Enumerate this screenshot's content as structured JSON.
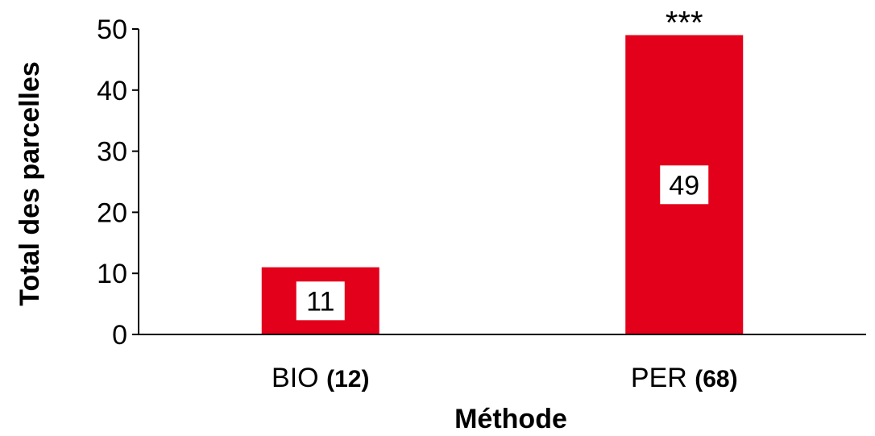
{
  "chart_data": {
    "type": "bar",
    "categories": [
      "BIO",
      "PER"
    ],
    "category_counts": [
      "(12)",
      "(68)"
    ],
    "values": [
      11,
      49
    ],
    "data_labels": [
      "11",
      "49"
    ],
    "significance": [
      "",
      "***"
    ],
    "xlabel": "Méthode",
    "ylabel": "Total des parcelles",
    "ylim": [
      0,
      50
    ],
    "yticks": [
      0,
      10,
      20,
      30,
      40,
      50
    ],
    "bar_color": "#e3001b",
    "grid": false
  }
}
